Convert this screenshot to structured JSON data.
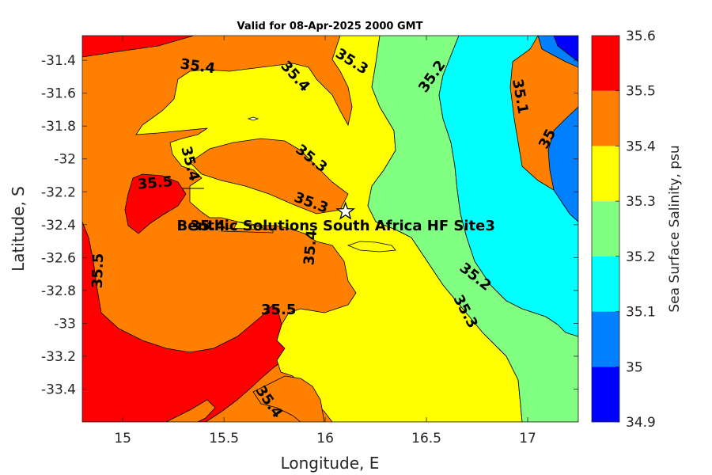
{
  "chart_data": {
    "type": "heatmap",
    "title": "Valid for 08-Apr-2025 2000 GMT",
    "xlabel": "Longitude, E",
    "ylabel": "Latitude, S",
    "xlim": [
      14.8,
      17.25
    ],
    "ylim": [
      -33.6,
      -31.25
    ],
    "x_ticks": [
      15,
      15.5,
      16,
      16.5,
      17
    ],
    "x_tick_labels": [
      "15",
      "15.5",
      "16",
      "16.5",
      "17"
    ],
    "y_ticks": [
      -31.4,
      -31.6,
      -31.8,
      -32,
      -32.2,
      -32.4,
      -32.6,
      -32.8,
      -33,
      -33.2,
      -33.4
    ],
    "y_tick_labels": [
      "-31.4",
      "-31.6",
      "-31.8",
      "-32",
      "-32.2",
      "-32.4",
      "-32.6",
      "-32.8",
      "-33",
      "-33.2",
      "-33.4"
    ],
    "colorbar": {
      "label": "Sea Surface Salinity, psu",
      "levels": [
        34.9,
        35,
        35.1,
        35.2,
        35.3,
        35.4,
        35.5,
        35.6
      ],
      "level_labels": [
        "34.9",
        "35",
        "35.1",
        "35.2",
        "35.3",
        "35.4",
        "35.5",
        "35.6"
      ],
      "colors": [
        "#0000ff",
        "#0080ff",
        "#00ffff",
        "#80ff80",
        "#ffff00",
        "#ff8000",
        "#ff0000"
      ]
    },
    "contour_labels": [
      {
        "text": "35.4",
        "lon": 15.37,
        "lat": -31.44,
        "angle": 8
      },
      {
        "text": "35.4",
        "lon": 15.85,
        "lat": -31.5,
        "angle": 48
      },
      {
        "text": "35.3",
        "lon": 16.13,
        "lat": -31.41,
        "angle": 32
      },
      {
        "text": "35.2",
        "lon": 16.53,
        "lat": -31.5,
        "angle": -55
      },
      {
        "text": "35.1",
        "lon": 16.96,
        "lat": -31.62,
        "angle": 80
      },
      {
        "text": "35",
        "lon": 17.1,
        "lat": -31.88,
        "angle": -62
      },
      {
        "text": "35.4",
        "lon": 15.33,
        "lat": -32.03,
        "angle": 75
      },
      {
        "text": "35.3",
        "lon": 15.93,
        "lat": -32.0,
        "angle": 38
      },
      {
        "text": "35.5",
        "lon": 15.16,
        "lat": -32.15,
        "angle": -5
      },
      {
        "text": "35.3",
        "lon": 15.93,
        "lat": -32.27,
        "angle": 20
      },
      {
        "text": "35.4",
        "lon": 15.42,
        "lat": -32.41,
        "angle": 0
      },
      {
        "text": "35.4",
        "lon": 15.93,
        "lat": -32.54,
        "angle": -85
      },
      {
        "text": "35.5",
        "lon": 14.88,
        "lat": -32.68,
        "angle": -88
      },
      {
        "text": "35.2",
        "lon": 16.74,
        "lat": -32.72,
        "angle": 38
      },
      {
        "text": "35.3",
        "lon": 16.69,
        "lat": -32.93,
        "angle": 62
      },
      {
        "text": "35.5",
        "lon": 15.77,
        "lat": -32.92,
        "angle": 0
      },
      {
        "text": "35.4",
        "lon": 15.72,
        "lat": -33.48,
        "angle": 55
      }
    ],
    "site": {
      "name": "Benthic Solutions South Africa HF Site3",
      "lon": 16.1,
      "lat": -32.32,
      "marker": "star-icon"
    }
  }
}
